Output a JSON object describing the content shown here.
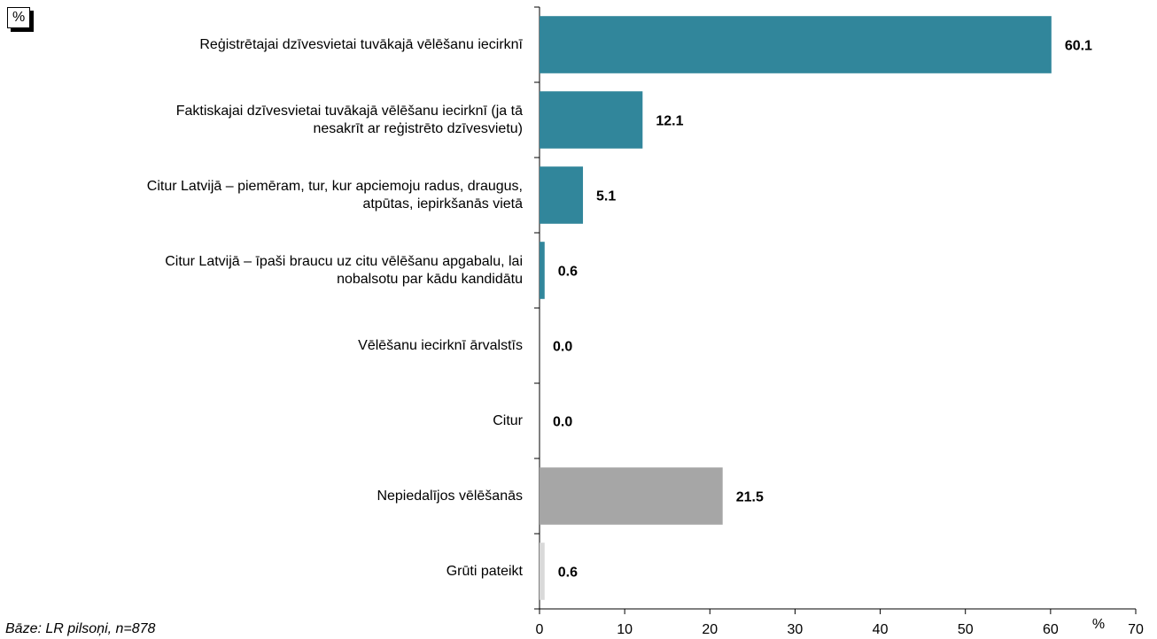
{
  "chart_data": {
    "type": "barh",
    "corner_label": "%",
    "x_unit": "%",
    "note": "Bāze: LR pilsoņi, n=878",
    "categories": [
      "Reģistrētajai dzīvesvietai tuvākajā vēlēšanu iecirknī",
      "Faktiskajai dzīvesvietai tuvākajā vēlēšanu iecirknī (ja tā\nnesakrīt ar reģistrēto dzīvesvietu)",
      "Citur Latvijā – piemēram, tur, kur apciemoju radus, draugus,\natpūtas, iepirkšanās vietā",
      "Citur Latvijā – īpaši braucu uz citu vēlēšanu apgabalu, lai\nnobalsotu par kādu kandidātu",
      "Vēlēšanu iecirknī ārvalstīs",
      "Citur",
      "Nepiedalījos vēlēšanās",
      "Grūti pateikt"
    ],
    "values": [
      60.1,
      12.1,
      5.1,
      0.6,
      0,
      0,
      21.5,
      0.6
    ],
    "value_labels": [
      "60.1",
      "12.1",
      "5.1",
      "0.6",
      "0.0",
      "0.0",
      "21.5",
      "0.6"
    ],
    "colors": [
      "#31869b",
      "#31869b",
      "#31869b",
      "#31869b",
      "#31869b",
      "#31869b",
      "#a6a6a6",
      "#d9d9d9"
    ],
    "xlim": [
      0,
      70
    ],
    "xticks": [
      0,
      10,
      20,
      30,
      40,
      50,
      60,
      70
    ]
  }
}
